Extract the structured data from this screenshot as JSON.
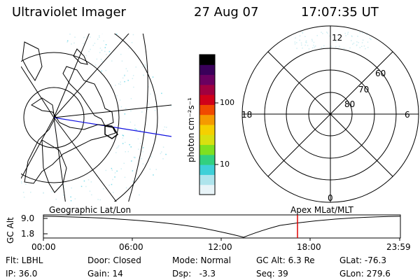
{
  "header": {
    "title": "Ultraviolet Imager",
    "date": "27 Aug 07",
    "time": "17:07:35 UT"
  },
  "geo_map": {
    "label": "Geographic Lat/Lon"
  },
  "colorbar": {
    "unit_label": "photon cm⁻²s⁻¹",
    "tick_100": "100",
    "tick_10": "10",
    "colors": [
      "#e8f4f8",
      "#aee4ec",
      "#3fd0d8",
      "#32d080",
      "#7ee020",
      "#d8e010",
      "#f5d000",
      "#f59a00",
      "#f04a00",
      "#d0001a",
      "#a00040",
      "#6a0060",
      "#3a005a",
      "#000000"
    ]
  },
  "polar_map": {
    "label": "Apex MLat/MLT",
    "mlt_12": "12",
    "mlt_18": "18",
    "mlt_6": "6",
    "mlt_0": "0",
    "lat_60": "60",
    "lat_70": "70",
    "lat_80": "80"
  },
  "timeline": {
    "axis_label": "GC Alt",
    "y_top": "9.0",
    "y_bottom": "1.8",
    "ticks": [
      "00:00",
      "06:00",
      "12:00",
      "18:00",
      "23:59"
    ],
    "marker_color": "#e00000"
  },
  "status": {
    "flt": "Flt: LBHL",
    "ip": "IP: 36.0",
    "door": "Door: Closed",
    "gain": "Gain: 14",
    "mode": "Mode: Normal",
    "dsp": "Dsp:   -3.3",
    "gcalt": "GC Alt: 6.3 Re",
    "seq": "Seq: 39",
    "glat": "GLat: -76.3",
    "glon": "GLon: 279.6"
  }
}
